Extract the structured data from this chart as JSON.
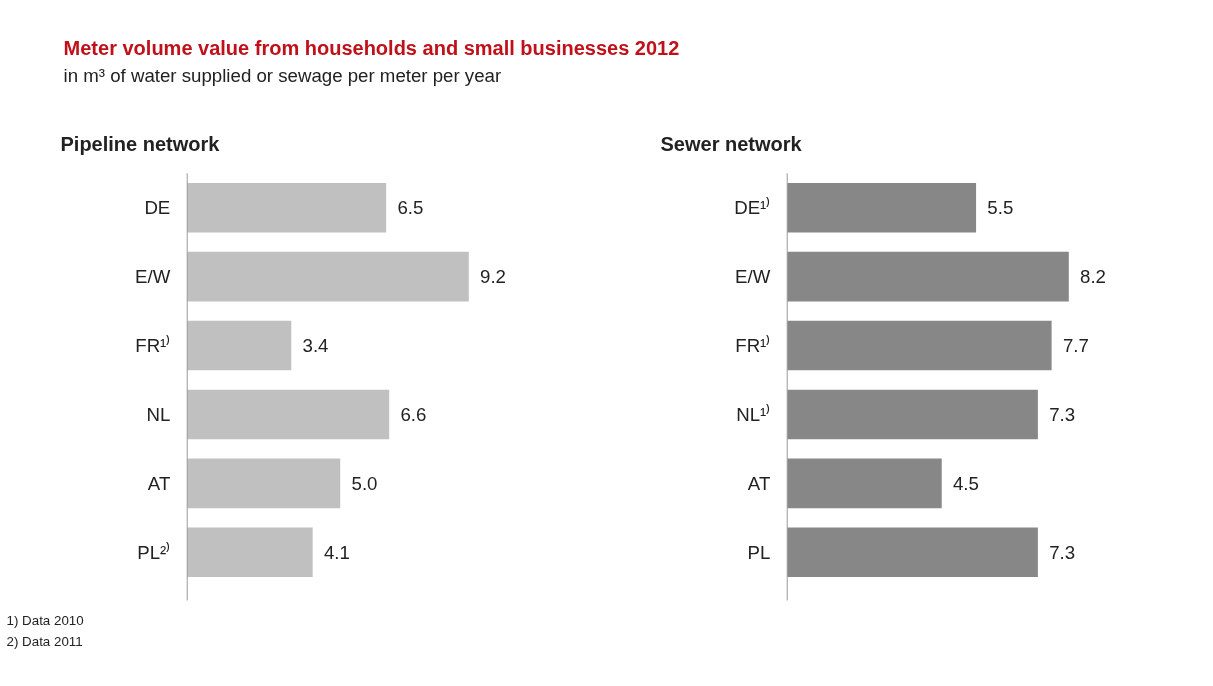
{
  "chart_data": [
    {
      "type": "other",
      "title": "Meter volume value from households and small businesses 2012",
      "subtitle": "in m³ of water supplied or sewage per meter per year",
      "annotations": [
        "1) Data 2010",
        "2) Data 2011"
      ]
    },
    {
      "type": "bar",
      "orientation": "horizontal",
      "title": "Pipeline network",
      "categories": [
        "DE",
        "E/W",
        "FR¹⁾",
        "NL",
        "AT",
        "PL²⁾"
      ],
      "values": [
        6.5,
        9.2,
        3.4,
        6.6,
        5.0,
        4.1
      ],
      "value_labels": [
        "6.5",
        "9.2",
        "3.4",
        "6.6",
        "5.0",
        "4.1"
      ],
      "color": "#c0c0c0"
    },
    {
      "type": "bar",
      "orientation": "horizontal",
      "title": "Sewer network",
      "categories": [
        "DE¹⁾",
        "E/W",
        "FR¹⁾",
        "NL¹⁾",
        "AT",
        "PL"
      ],
      "values": [
        5.5,
        8.2,
        7.7,
        7.3,
        4.5,
        7.3
      ],
      "value_labels": [
        "5.5",
        "8.2",
        "7.7",
        "7.3",
        "4.5",
        "7.3"
      ],
      "color": "#878787"
    }
  ]
}
